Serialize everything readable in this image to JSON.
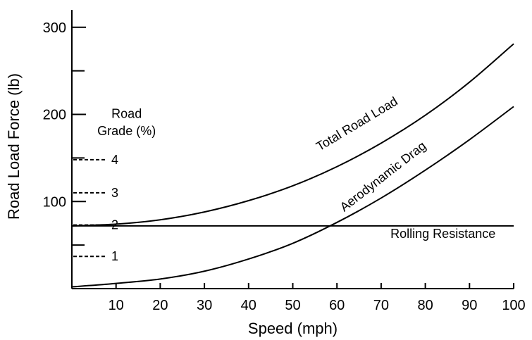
{
  "chart_data": {
    "type": "line",
    "xlabel": "Speed (mph)",
    "ylabel": "Road Load Force (lb)",
    "xlim": [
      0,
      100
    ],
    "ylim": [
      0,
      320
    ],
    "x_ticks": [
      10,
      20,
      30,
      40,
      50,
      60,
      70,
      80,
      90,
      100
    ],
    "y_ticks_labeled": [
      100,
      200,
      300
    ],
    "y_ticks_minor": [
      50,
      150,
      250
    ],
    "grid": false,
    "series": [
      {
        "name": "Total Road Load",
        "x": [
          0,
          10,
          20,
          30,
          40,
          50,
          60,
          70,
          80,
          90,
          100
        ],
        "y": [
          72,
          74,
          79,
          88,
          101,
          118,
          140,
          167,
          199,
          237,
          281
        ]
      },
      {
        "name": "Aerodynamic Drag",
        "x": [
          0,
          10,
          20,
          30,
          40,
          50,
          60,
          70,
          80,
          90,
          100
        ],
        "y": [
          2,
          6,
          11,
          20,
          34,
          52,
          76,
          104,
          136,
          171,
          209
        ]
      },
      {
        "name": "Rolling Resistance",
        "x": [
          0,
          100
        ],
        "y": [
          72,
          72
        ]
      }
    ],
    "road_grade": {
      "title_line1": "Road",
      "title_line2": "Grade (%)",
      "markers": [
        {
          "label": "1",
          "y": 37
        },
        {
          "label": "2",
          "y": 73
        },
        {
          "label": "3",
          "y": 110
        },
        {
          "label": "4",
          "y": 148
        }
      ]
    },
    "curve_label_positions": {
      "Total Road Load": {
        "x": 65,
        "y": 185,
        "angle_deg": -31
      },
      "Aerodynamic Drag": {
        "x": 71,
        "y": 125,
        "angle_deg": -38
      },
      "Rolling Resistance": {
        "x": 84,
        "y": 58,
        "angle_deg": 0
      }
    }
  }
}
